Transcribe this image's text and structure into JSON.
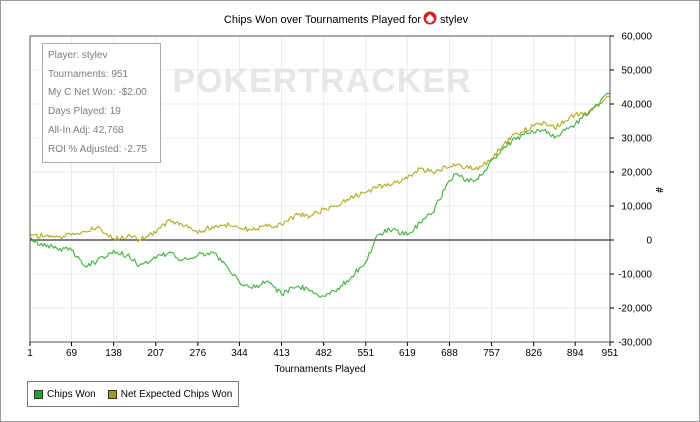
{
  "colors": {
    "chips_won": "#3bb23b",
    "net_expected": "#b4a81e",
    "swatch_chips_won": "#2f9a2f",
    "swatch_net_expected": "#a39a20",
    "logo_red": "#d22020",
    "watermark": "#e6e6e6"
  },
  "header": {
    "title": "Chips Won over Tournaments Played for",
    "player_icon": "poker-spade-logo-icon",
    "player_name": "stylev"
  },
  "watermark": {
    "text": "POKERTRACKER"
  },
  "stats_box": [
    "Player: stylev",
    "Tournaments: 951",
    "My C Net Won: -$2.00",
    "Days Played: 19",
    "All-In Adj: 42,768",
    "ROI % Adjusted: -2.75"
  ],
  "chart_data": {
    "type": "line",
    "title": "Chips Won over Tournaments Played for stylev",
    "xlabel": "Tournaments Played",
    "ylabel": "#",
    "xlim": [
      1,
      951
    ],
    "ylim": [
      -30000,
      60000
    ],
    "x_ticks": [
      1,
      69,
      138,
      207,
      276,
      344,
      413,
      482,
      551,
      619,
      688,
      757,
      826,
      894,
      951
    ],
    "y_ticks": [
      -30000,
      -20000,
      -10000,
      0,
      10000,
      20000,
      30000,
      40000,
      50000,
      60000
    ],
    "y_tick_labels": [
      "-30,000",
      "-20,000",
      "-10,000",
      "0",
      "10,000",
      "20,000",
      "30,000",
      "40,000",
      "50,000",
      "60,000"
    ],
    "grid": true,
    "legend_position": "bottom-left",
    "series": [
      {
        "name": "Chips Won",
        "x": [
          1,
          30,
          50,
          69,
          90,
          110,
          138,
          160,
          180,
          207,
          230,
          250,
          276,
          300,
          320,
          344,
          370,
          390,
          413,
          440,
          460,
          482,
          500,
          520,
          551,
          570,
          590,
          619,
          640,
          660,
          688,
          700,
          720,
          740,
          757,
          775,
          790,
          810,
          826,
          845,
          860,
          880,
          894,
          910,
          925,
          940,
          951
        ],
        "y": [
          0,
          -1500,
          -2500,
          -3000,
          -7500,
          -6500,
          -3000,
          -4500,
          -7500,
          -5500,
          -3500,
          -6000,
          -4500,
          -3500,
          -7000,
          -12500,
          -14000,
          -12000,
          -16000,
          -13500,
          -15000,
          -16500,
          -15000,
          -12000,
          -6500,
          1500,
          3000,
          1500,
          5000,
          8000,
          17500,
          19500,
          17000,
          19000,
          23500,
          26500,
          29000,
          31000,
          31500,
          32500,
          30000,
          33000,
          34000,
          37000,
          39000,
          42000,
          43000
        ]
      },
      {
        "name": "Net Expected Chips Won",
        "x": [
          1,
          30,
          50,
          69,
          90,
          110,
          138,
          160,
          180,
          207,
          230,
          250,
          276,
          300,
          320,
          344,
          370,
          390,
          413,
          440,
          460,
          482,
          500,
          520,
          551,
          570,
          590,
          619,
          640,
          660,
          688,
          700,
          720,
          740,
          757,
          775,
          790,
          810,
          826,
          845,
          860,
          880,
          894,
          910,
          925,
          940,
          951
        ],
        "y": [
          1000,
          1500,
          1000,
          1500,
          2500,
          3500,
          500,
          1000,
          0,
          2000,
          6000,
          4500,
          2000,
          4000,
          4500,
          3500,
          3000,
          4000,
          4500,
          7500,
          7000,
          9000,
          10000,
          12000,
          14000,
          15500,
          16000,
          18000,
          21000,
          20000,
          21500,
          22000,
          21000,
          21500,
          24000,
          27500,
          30500,
          32000,
          33500,
          34500,
          33000,
          35000,
          37000,
          37500,
          39000,
          41000,
          42500
        ]
      }
    ]
  }
}
